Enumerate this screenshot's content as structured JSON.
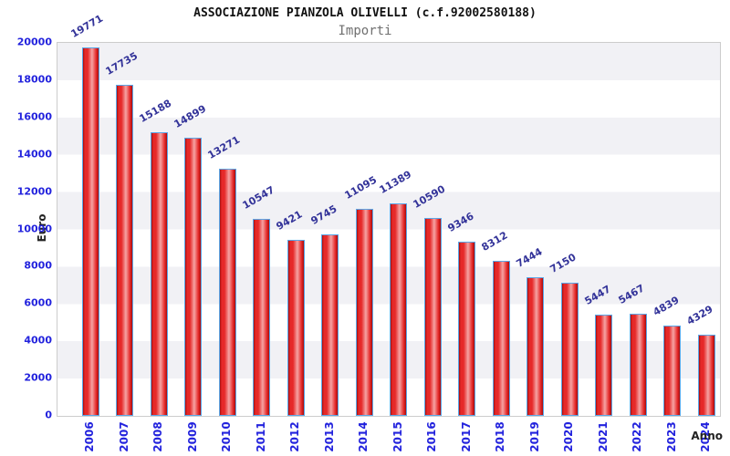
{
  "chart_data": {
    "type": "bar",
    "title": "ASSOCIAZIONE PIANZOLA OLIVELLI (c.f.92002580188)",
    "subtitle": "Importi",
    "xlabel": "Anno",
    "ylabel": "Euro",
    "categories": [
      "2006",
      "2007",
      "2008",
      "2009",
      "2010",
      "2011",
      "2012",
      "2013",
      "2014",
      "2015",
      "2016",
      "2017",
      "2018",
      "2019",
      "2020",
      "2021",
      "2022",
      "2023",
      "2024"
    ],
    "values": [
      19771,
      17735,
      15188,
      14899,
      13271,
      10547,
      9421,
      9745,
      11095,
      11389,
      10590,
      9346,
      8312,
      7444,
      7150,
      5447,
      5467,
      4839,
      4329
    ],
    "ylim": [
      0,
      20000
    ],
    "ytick_step": 2000,
    "ytick_labels": [
      "0",
      "2000",
      "4000",
      "6000",
      "8000",
      "10000",
      "12000",
      "14000",
      "16000",
      "18000",
      "20000"
    ],
    "grid": "alternating horizontal bands every 2000, gray band at 18000-20000",
    "legend": null,
    "colors": {
      "bar_dark": "#a50d0d",
      "bar_mid": "#e62929",
      "bar_light": "#f5a3a3",
      "bar_border": "#5aa7e8",
      "axis_tick": "#2222dd",
      "value_label": "#333399",
      "band": "#f1f1f5",
      "plot_border": "#cccccc",
      "title": "#111111",
      "subtitle": "#707070",
      "axis_title": "#222222"
    }
  }
}
